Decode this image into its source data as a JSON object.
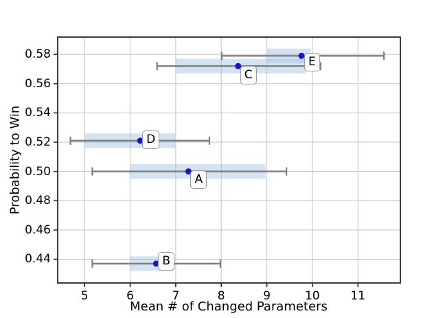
{
  "chart_data": {
    "type": "scatter",
    "title": "",
    "xlabel": "Mean # of Changed Parameters",
    "ylabel": "Probability to Win",
    "xlim": [
      4.41,
      11.93
    ],
    "ylim": [
      0.4238,
      0.5918
    ],
    "x_ticks": [
      "5",
      "6",
      "7",
      "8",
      "9",
      "10",
      "11"
    ],
    "y_ticks": [
      "0.44",
      "0.46",
      "0.48",
      "0.50",
      "0.52",
      "0.54",
      "0.56",
      "0.58"
    ],
    "grid": true,
    "legend": "none",
    "colors": {
      "point": "#1515d0",
      "error_bar": "#7f7f7f",
      "band_fill": "rgba(160,194,226,0.45)",
      "grid": "#cccccc",
      "spine": "#262626"
    },
    "points": [
      {
        "label": "A",
        "x": 7.28,
        "y": 0.5,
        "err_lo": 5.17,
        "err_hi": 9.43,
        "band_lo": 6.0,
        "band_hi": 8.97,
        "band_half_height": 0.005,
        "label_offset": [
          3,
          -2
        ]
      },
      {
        "label": "B",
        "x": 6.57,
        "y": 0.437,
        "err_lo": 5.17,
        "err_hi": 7.98,
        "band_lo": 6.0,
        "band_hi": 6.97,
        "band_half_height": 0.005,
        "label_offset": [
          3,
          -17
        ]
      },
      {
        "label": "C",
        "x": 8.37,
        "y": 0.572,
        "err_lo": 6.59,
        "err_hi": 10.18,
        "band_lo": 7.0,
        "band_hi": 9.85,
        "band_half_height": 0.005,
        "label_offset": [
          3,
          0
        ]
      },
      {
        "label": "D",
        "x": 6.22,
        "y": 0.521,
        "err_lo": 4.69,
        "err_hi": 7.74,
        "band_lo": 5.0,
        "band_hi": 6.99,
        "band_half_height": 0.005,
        "label_offset": [
          3,
          -15
        ]
      },
      {
        "label": "E",
        "x": 9.76,
        "y": 0.579,
        "err_lo": 8.01,
        "err_hi": 11.57,
        "band_lo": 9.0,
        "band_hi": 9.95,
        "band_half_height": 0.005,
        "label_offset": [
          4,
          -4
        ]
      }
    ]
  }
}
